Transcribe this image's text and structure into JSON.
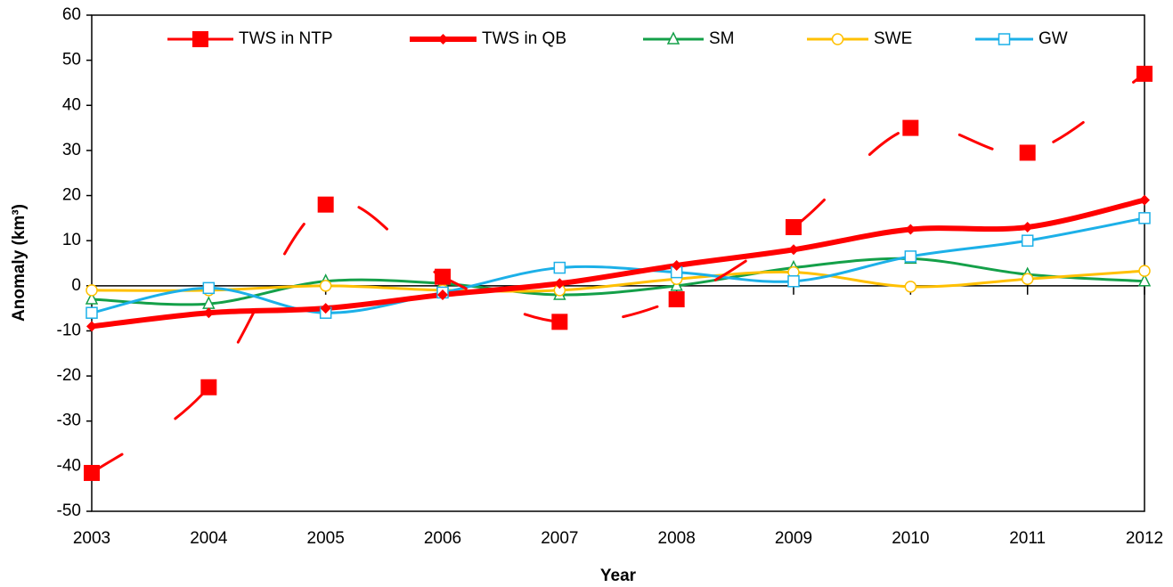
{
  "chart_data": {
    "type": "line",
    "x_label": "Year",
    "y_label": "Anomaly (km³)",
    "x": [
      2003,
      2004,
      2005,
      2006,
      2007,
      2008,
      2009,
      2010,
      2011,
      2012
    ],
    "xlim": [
      2003,
      2012
    ],
    "xticks": [
      2003,
      2004,
      2005,
      2006,
      2007,
      2008,
      2009,
      2010,
      2011,
      2012
    ],
    "ylim": [
      -50,
      60
    ],
    "yticks": [
      -50,
      -40,
      -30,
      -20,
      -10,
      0,
      10,
      20,
      30,
      40,
      50,
      60
    ],
    "smooth": true,
    "legend": "top",
    "series": [
      {
        "name": "TWS in NTP",
        "color": "#ff0000",
        "dashed": true,
        "marker": "square-filled",
        "values": [
          -41.5,
          -22.5,
          18,
          2,
          -8,
          -3,
          13,
          35,
          29.5,
          47
        ]
      },
      {
        "name": "TWS in QB",
        "color": "#ff0000",
        "dashed": false,
        "marker": "diamond",
        "values": [
          -9,
          -6,
          -5,
          -2,
          0.5,
          4.5,
          8,
          12.5,
          13,
          19
        ]
      },
      {
        "name": "SM",
        "color": "#14a049",
        "dashed": false,
        "marker": "triangle-open",
        "values": [
          -3,
          -4,
          1,
          0.5,
          -2,
          0,
          4,
          6,
          2.5,
          1
        ]
      },
      {
        "name": "SWE",
        "color": "#ffc000",
        "dashed": false,
        "marker": "circle-open",
        "values": [
          -1,
          -1,
          0,
          -1,
          -1,
          1.5,
          3,
          -0.2,
          1.5,
          3.3
        ]
      },
      {
        "name": "GW",
        "color": "#1cb0e8",
        "dashed": false,
        "marker": "square-open",
        "values": [
          -6,
          -0.5,
          -6,
          -1.5,
          4,
          3,
          1,
          6.5,
          10,
          15
        ]
      }
    ]
  }
}
